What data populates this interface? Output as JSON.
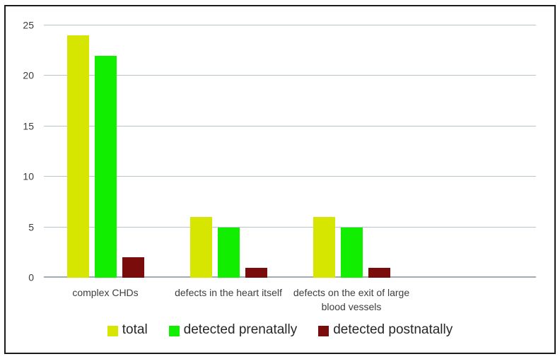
{
  "figure": {
    "background": "#ffffff",
    "border_color": "#1b1b1b",
    "gridline_color": "#b9c4cb",
    "baseline_color": "#a0acb4",
    "text_color": "#3d3d3d"
  },
  "chart_data": {
    "type": "bar",
    "title": "",
    "categories": [
      "complex CHDs",
      "defects in the heart itself",
      "defects on the exit of large\nblood vessels"
    ],
    "series": [
      {
        "name": "total",
        "color": "#d6e600",
        "values": [
          24,
          6,
          6
        ]
      },
      {
        "name": "detected prenatally",
        "color": "#12ee00",
        "values": [
          22,
          5,
          5
        ]
      },
      {
        "name": "detected postnatally",
        "color": "#7b0c0c",
        "values": [
          2,
          1,
          1
        ]
      }
    ],
    "ylim": [
      0,
      25
    ],
    "yticks": [
      0,
      5,
      10,
      15,
      20,
      25
    ],
    "num_category_slots": 4,
    "grid": "horizontal",
    "legend_position": "bottom"
  }
}
